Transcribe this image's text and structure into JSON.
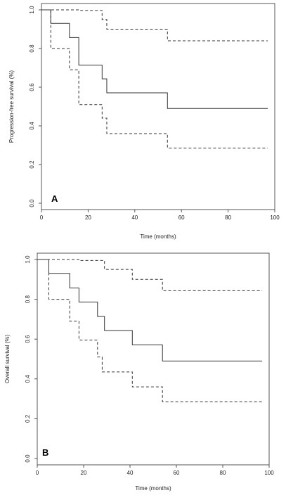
{
  "chart_data": [
    {
      "type": "line",
      "panel_label": "A",
      "xlabel": "Time (months)",
      "ylabel": "Progression-free survival (%)",
      "xlim": [
        0,
        100
      ],
      "ylim": [
        0,
        1
      ],
      "x_ticks": [
        "0",
        "20",
        "40",
        "60",
        "80",
        "100"
      ],
      "y_ticks": [
        "0.0",
        "0.2",
        "0.4",
        "0.6",
        "0.8",
        "1.0"
      ],
      "grid": false,
      "series": [
        {
          "style": "solid",
          "x": [
            0,
            4,
            12,
            16,
            26,
            28,
            54,
            97
          ],
          "y": [
            1.0,
            0.93,
            0.857,
            0.714,
            0.643,
            0.571,
            0.49,
            0.49
          ]
        },
        {
          "style": "dashed",
          "x": [
            0,
            4,
            12,
            16,
            26,
            28,
            54,
            97
          ],
          "y": [
            1.0,
            0.8,
            0.69,
            0.51,
            0.44,
            0.36,
            0.285,
            0.285
          ]
        },
        {
          "style": "dashed",
          "x": [
            0,
            16,
            26,
            28,
            54,
            97
          ],
          "y": [
            1.0,
            0.997,
            0.95,
            0.9,
            0.84,
            0.84
          ]
        }
      ]
    },
    {
      "type": "line",
      "panel_label": "B",
      "xlabel": "Time (months)",
      "ylabel": "Overall survival (%)",
      "xlim": [
        0,
        100
      ],
      "ylim": [
        0,
        1
      ],
      "x_ticks": [
        "0",
        "20",
        "40",
        "60",
        "80",
        "100"
      ],
      "y_ticks": [
        "0.0",
        "0.2",
        "0.4",
        "0.6",
        "0.8",
        "1.0"
      ],
      "grid": false,
      "series": [
        {
          "style": "solid",
          "x": [
            0,
            5,
            14,
            18,
            26,
            29,
            41,
            54,
            97
          ],
          "y": [
            1.0,
            0.93,
            0.857,
            0.786,
            0.714,
            0.643,
            0.571,
            0.49,
            0.49
          ]
        },
        {
          "style": "dashed",
          "x": [
            0,
            5,
            14,
            18,
            26,
            28,
            41,
            54,
            97
          ],
          "y": [
            1.0,
            0.8,
            0.69,
            0.595,
            0.51,
            0.435,
            0.36,
            0.285,
            0.285
          ]
        },
        {
          "style": "dashed",
          "x": [
            0,
            18,
            29,
            41,
            54,
            97
          ],
          "y": [
            1.0,
            0.995,
            0.95,
            0.9,
            0.843,
            0.843
          ]
        }
      ]
    }
  ]
}
